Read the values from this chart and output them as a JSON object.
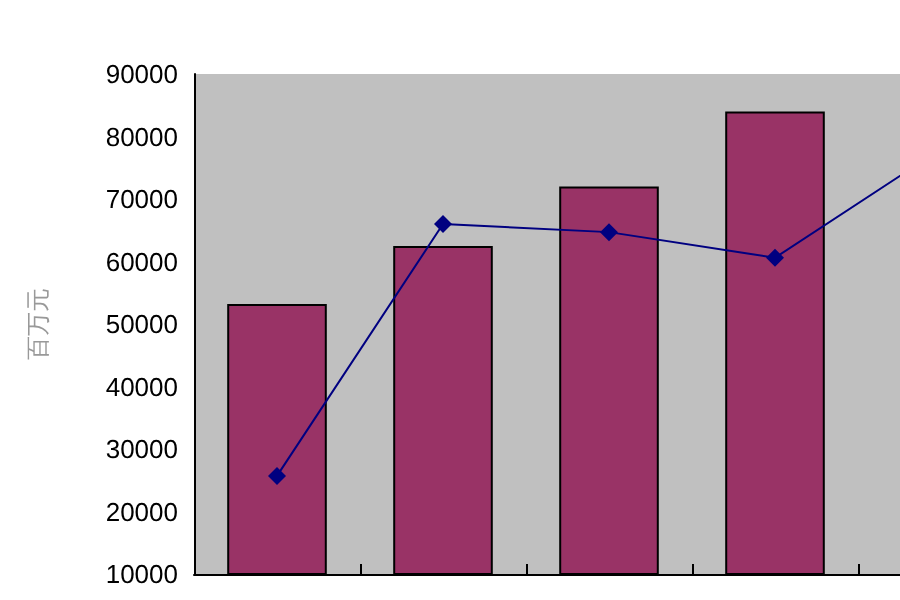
{
  "chart_data": {
    "type": "bar",
    "ylabel": "百万元",
    "categories": [
      null,
      null,
      null,
      null,
      null
    ],
    "series": [
      {
        "color": "#993366",
        "values": [
          53200,
          62500,
          72000,
          84000,
          null
        ]
      },
      {
        "type": "line",
        "color": "#000080",
        "values": [
          25700,
          66000,
          64700,
          60600,
          78000
        ],
        "marker": "diamond",
        "line_style": "solid"
      }
    ],
    "ylim": [
      10000,
      90000
    ],
    "yticks": [
      10000,
      20000,
      30000,
      40000,
      50000,
      60000,
      70000,
      80000,
      90000
    ],
    "grid": false,
    "tick_labels": "y"
  }
}
